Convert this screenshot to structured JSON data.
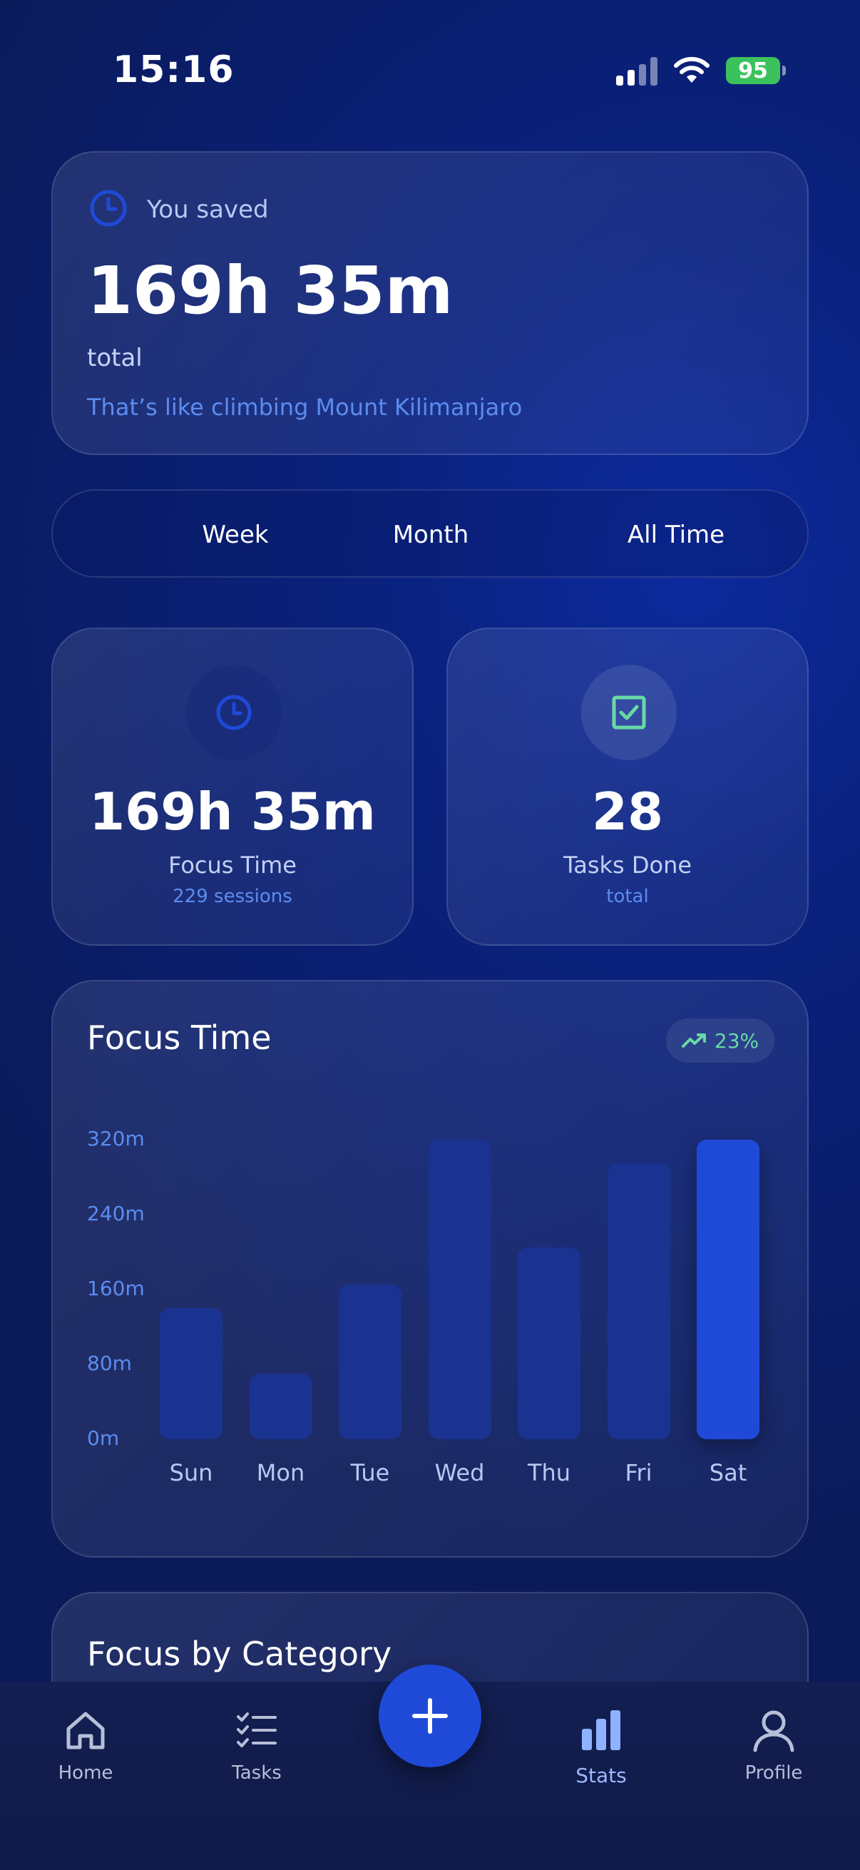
{
  "status_bar": {
    "time": "15:16",
    "battery": "95"
  },
  "saved_card": {
    "label": "You saved",
    "value": "169h 35m",
    "qualifier": "total",
    "comparison": "That’s like climbing Mount Kilimanjaro"
  },
  "period_selector": {
    "options": [
      "Week",
      "Month",
      "All Time"
    ]
  },
  "stats": {
    "focus": {
      "value": "169h 35m",
      "label": "Focus Time",
      "sub": "229 sessions"
    },
    "tasks": {
      "value": "28",
      "label": "Tasks Done",
      "sub": "total"
    }
  },
  "focus_chart": {
    "title": "Focus Time",
    "trend": "23%",
    "chart_data": {
      "type": "bar",
      "categories": [
        "Sun",
        "Mon",
        "Tue",
        "Wed",
        "Thu",
        "Fri",
        "Sat"
      ],
      "values": [
        140,
        70,
        165,
        320,
        205,
        295,
        320
      ],
      "yticks": [
        "320m",
        "240m",
        "160m",
        "80m",
        "0m"
      ],
      "ylim": [
        0,
        320
      ],
      "highlight": "Sat"
    }
  },
  "category_card": {
    "title": "Focus by Category"
  },
  "nav": {
    "home": "Home",
    "tasks": "Tasks",
    "stats": "Stats",
    "profile": "Profile",
    "active": "Stats"
  },
  "colors": {
    "accent": "#1f4ad8",
    "success": "#67d9a4",
    "muted": "#5c8cf0"
  }
}
